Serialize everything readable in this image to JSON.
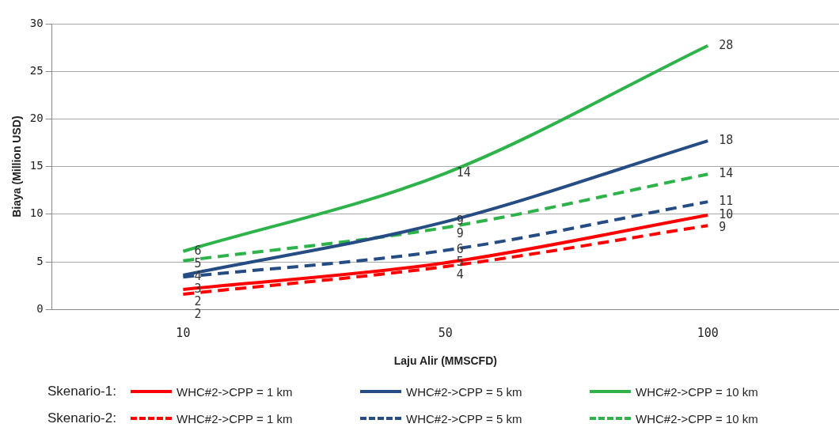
{
  "chart_data": {
    "type": "line",
    "xlabel": "Laju Alir (MMSCFD)",
    "ylabel": "Biaya (Million USD)",
    "categories": [
      "10",
      "50",
      "100"
    ],
    "ylim": [
      0,
      30
    ],
    "yticks": [
      0,
      5,
      10,
      15,
      20,
      25,
      30
    ],
    "grid": "y",
    "legend": "bottom",
    "marker": "none",
    "annotations": [
      "Skenario-1:",
      "Skenario-2:"
    ],
    "series": [
      {
        "name": "WHC#2->CPP = 1 km",
        "color": "#ff0000",
        "line_style": "solid",
        "values": [
          2.1,
          4.9,
          9.9
        ],
        "value_labels": [
          "2",
          "5",
          "10"
        ]
      },
      {
        "name": "WHC#2->CPP = 5 km",
        "color": "#254d84",
        "line_style": "solid",
        "values": [
          3.6,
          9.2,
          17.7
        ],
        "value_labels": [
          "4",
          "9",
          "18"
        ]
      },
      {
        "name": "WHC#2->CPP = 10 km",
        "color": "#2db34a",
        "line_style": "solid",
        "values": [
          6.1,
          14.3,
          27.7
        ],
        "value_labels": [
          "6",
          "14",
          "28"
        ]
      },
      {
        "name": "WHC#2->CPP = 1 km",
        "color": "#ff0000",
        "line_style": "dashed",
        "values": [
          1.6,
          4.5,
          8.8
        ],
        "value_labels": [
          "2",
          "4",
          "9"
        ]
      },
      {
        "name": "WHC#2->CPP = 5 km",
        "color": "#254d84",
        "line_style": "dashed",
        "values": [
          3.4,
          6.2,
          11.3
        ],
        "value_labels": [
          "3",
          "6",
          "11"
        ]
      },
      {
        "name": "WHC#2->CPP = 10 km",
        "color": "#2db34a",
        "line_style": "dashed",
        "values": [
          5.1,
          8.6,
          14.2
        ],
        "value_labels": [
          "5",
          "9",
          "14"
        ]
      }
    ]
  }
}
